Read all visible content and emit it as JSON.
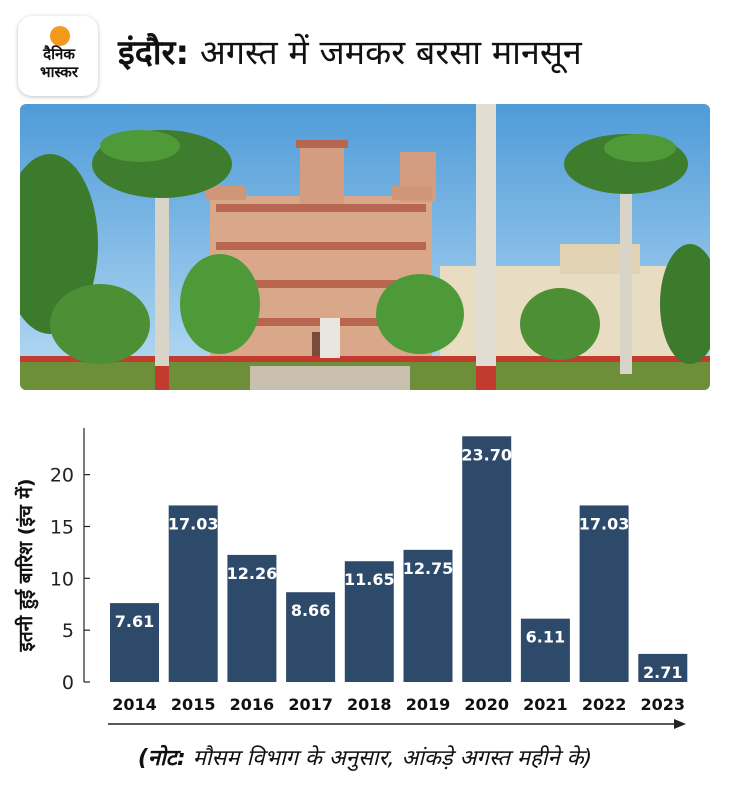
{
  "logo": {
    "line1": "दैनिक",
    "line2": "भास्कर"
  },
  "headline": {
    "place": "इंदौर:",
    "text": "अगस्त में जमकर बरसा मानसून"
  },
  "colors": {
    "bar": "#2e4a6b",
    "sun": "#f39a1c",
    "sky": "#7fbbe6"
  },
  "photo": {
    "icon": "palace-photo"
  },
  "chart_data": {
    "type": "bar",
    "categories": [
      "2014",
      "2015",
      "2016",
      "2017",
      "2018",
      "2019",
      "2020",
      "2021",
      "2022",
      "2023"
    ],
    "values": [
      7.61,
      17.03,
      12.26,
      8.66,
      11.65,
      12.75,
      23.7,
      6.11,
      17.03,
      2.71
    ],
    "value_labels": [
      "7.61",
      "17.03",
      "12.26",
      "8.66",
      "11.65",
      "12.75",
      "23.70",
      "6.11",
      "17.03",
      "2.71"
    ],
    "ylabel": "इतनी हुई बारिश (इंच में)",
    "yticks": [
      0,
      5,
      10,
      15,
      20
    ],
    "ylim": [
      0,
      24.5
    ],
    "grid": false,
    "legend": "none"
  },
  "note": {
    "prefix": "(नोट:",
    "text": " मौसम विभाग के अनुसार, आंकड़े अगस्त महीने के)"
  }
}
